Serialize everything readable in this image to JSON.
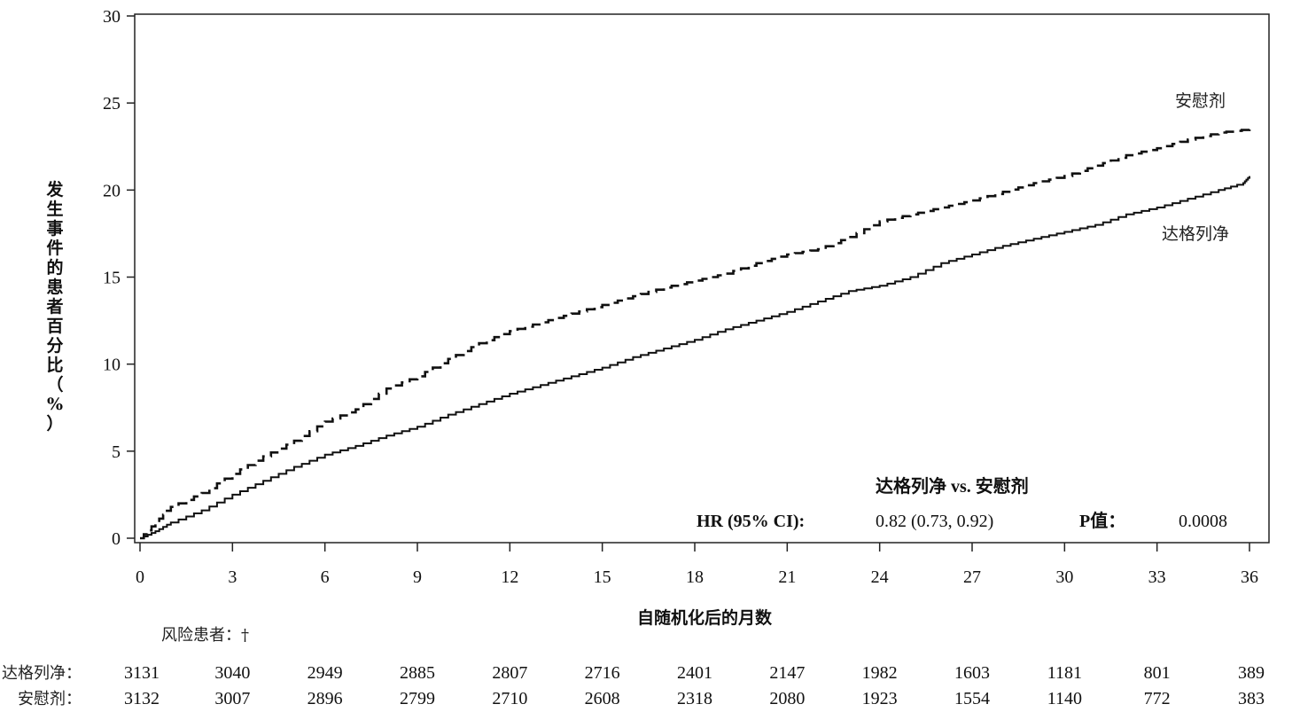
{
  "chart_data": {
    "type": "line",
    "xlabel": "自随机化后的月数",
    "ylabel": "发生事件的患者百分比（%）",
    "xlim": [
      0,
      36
    ],
    "ylim": [
      0,
      30
    ],
    "x_ticks": [
      0,
      3,
      6,
      9,
      12,
      15,
      18,
      21,
      24,
      27,
      30,
      33,
      36
    ],
    "y_ticks": [
      0,
      5,
      10,
      15,
      20,
      25,
      30
    ],
    "grid": false,
    "series": [
      {
        "name": "安慰剂",
        "style": "dashed",
        "color": "#111111",
        "x": [
          0,
          0.5,
          1,
          2,
          3,
          4,
          5,
          6,
          7,
          8,
          9,
          10,
          11,
          12,
          13,
          14,
          15,
          16,
          17,
          18,
          19,
          20,
          21,
          22,
          23,
          24,
          25,
          26,
          27,
          28,
          29,
          30,
          31,
          32,
          33,
          34,
          35,
          36
        ],
        "y": [
          0,
          0.9,
          1.8,
          2.6,
          3.7,
          4.7,
          5.6,
          6.7,
          7.4,
          8.6,
          9.3,
          10.3,
          11.2,
          11.9,
          12.4,
          12.9,
          13.4,
          13.9,
          14.4,
          14.8,
          15.2,
          15.8,
          16.3,
          16.6,
          17.3,
          18.2,
          18.6,
          19.0,
          19.4,
          19.9,
          20.4,
          20.8,
          21.4,
          22.0,
          22.4,
          22.9,
          23.3,
          23.5
        ]
      },
      {
        "name": "达格列净",
        "style": "solid",
        "color": "#111111",
        "x": [
          0,
          0.5,
          1,
          2,
          3,
          4,
          5,
          6,
          7,
          8,
          9,
          10,
          11,
          12,
          13,
          14,
          15,
          16,
          17,
          18,
          19,
          20,
          21,
          22,
          23,
          24,
          25,
          26,
          27,
          28,
          29,
          30,
          31,
          32,
          33,
          34,
          35,
          35.8,
          36
        ],
        "y": [
          0,
          0.4,
          0.9,
          1.6,
          2.5,
          3.3,
          4.1,
          4.8,
          5.3,
          5.9,
          6.4,
          7.1,
          7.7,
          8.3,
          8.8,
          9.3,
          9.8,
          10.4,
          10.9,
          11.4,
          12.0,
          12.5,
          13.0,
          13.6,
          14.2,
          14.5,
          15.0,
          15.8,
          16.3,
          16.8,
          17.2,
          17.6,
          18.0,
          18.6,
          19.0,
          19.5,
          20.0,
          20.4,
          20.8
        ]
      }
    ],
    "series_labels": [
      "安慰剂",
      "达格列净"
    ],
    "annotation": {
      "title": "达格列净 vs. 安慰剂",
      "hr_label": "HR (95% CI):",
      "hr_value": "0.82 (0.73, 0.92)",
      "p_label": "P值：",
      "p_value": "0.0008"
    },
    "risk_table": {
      "title": "风险患者：†",
      "rows": [
        {
          "label": "达格列净：",
          "values": [
            3131,
            3040,
            2949,
            2885,
            2807,
            2716,
            2401,
            2147,
            1982,
            1603,
            1181,
            801,
            389
          ]
        },
        {
          "label": "安慰剂：",
          "values": [
            3132,
            3007,
            2896,
            2799,
            2710,
            2608,
            2318,
            2080,
            1923,
            1554,
            1140,
            772,
            383
          ]
        }
      ]
    }
  }
}
